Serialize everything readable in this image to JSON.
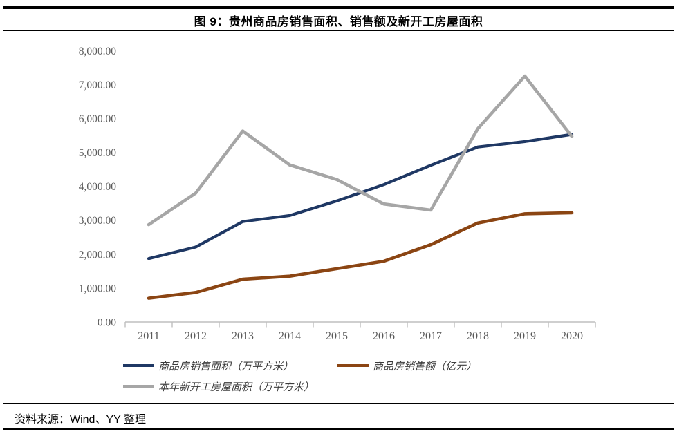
{
  "figure": {
    "title": "图 9：贵州商品房销售面积、销售额及新开工房屋面积",
    "source": "资料来源：Wind、YY 整理"
  },
  "chart_data": {
    "type": "line",
    "title": "图 9：贵州商品房销售面积、销售额及新开工房屋面积",
    "categories": [
      "2011",
      "2012",
      "2013",
      "2014",
      "2015",
      "2016",
      "2017",
      "2018",
      "2019",
      "2020"
    ],
    "series": [
      {
        "name": "商品房销售面积（万平方米）",
        "color": "#1F3864",
        "values": [
          1870,
          2210,
          2960,
          3140,
          3570,
          4050,
          4620,
          5160,
          5320,
          5530
        ]
      },
      {
        "name": "商品房销售额（亿元）",
        "color": "#8B4513",
        "values": [
          700,
          870,
          1260,
          1350,
          1570,
          1790,
          2280,
          2920,
          3190,
          3220
        ]
      },
      {
        "name": "本年新开工房屋面积（万平方米）",
        "color": "#A6A6A6",
        "values": [
          2870,
          3800,
          5630,
          4630,
          4200,
          3480,
          3300,
          5700,
          7250,
          5470
        ]
      }
    ],
    "ylim": [
      0,
      8000
    ],
    "ytick_step": 1000,
    "ytick_labels": [
      "0.00",
      "1,000.00",
      "2,000.00",
      "3,000.00",
      "4,000.00",
      "5,000.00",
      "6,000.00",
      "7,000.00",
      "8,000.00"
    ],
    "xlabel": "",
    "ylabel": "",
    "grid": false,
    "legend_position": "bottom",
    "axis_color": "#BFBFBF",
    "tick_label_color": "#595959"
  }
}
